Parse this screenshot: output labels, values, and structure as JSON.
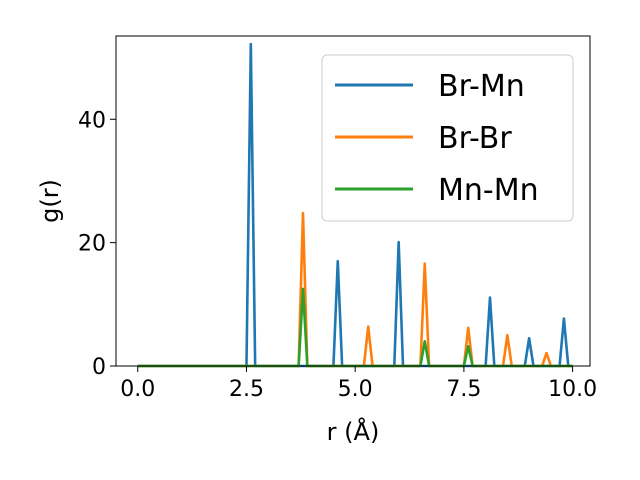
{
  "chart_data": {
    "type": "line",
    "xlabel": "r (Å)",
    "ylabel": "g(r)",
    "xlim": [
      -0.5,
      10.4
    ],
    "ylim": [
      0,
      53.5
    ],
    "xticks": [
      "0.0",
      "2.5",
      "5.0",
      "7.5",
      "10.0"
    ],
    "yticks": [
      "0",
      "20",
      "40"
    ],
    "grid": false,
    "legend_position": "top-right",
    "series": [
      {
        "name": "Br-Mn",
        "color": "#1f77b4",
        "peaks": [
          [
            2.62,
            52.2
          ],
          [
            4.6,
            17.0
          ],
          [
            6.0,
            20.1
          ],
          [
            8.1,
            11.1
          ],
          [
            9.0,
            4.5
          ],
          [
            9.75,
            7.7
          ]
        ]
      },
      {
        "name": "Br-Br",
        "color": "#ff7f0e",
        "peaks": [
          [
            3.8,
            24.8
          ],
          [
            5.3,
            6.4
          ],
          [
            6.6,
            16.6
          ],
          [
            7.6,
            6.2
          ],
          [
            8.5,
            5.0
          ],
          [
            9.35,
            2.1
          ]
        ]
      },
      {
        "name": "Mn-Mn",
        "color": "#2ca02c",
        "peaks": [
          [
            3.8,
            12.5
          ],
          [
            6.6,
            4.0
          ],
          [
            7.6,
            3.2
          ]
        ]
      }
    ]
  }
}
